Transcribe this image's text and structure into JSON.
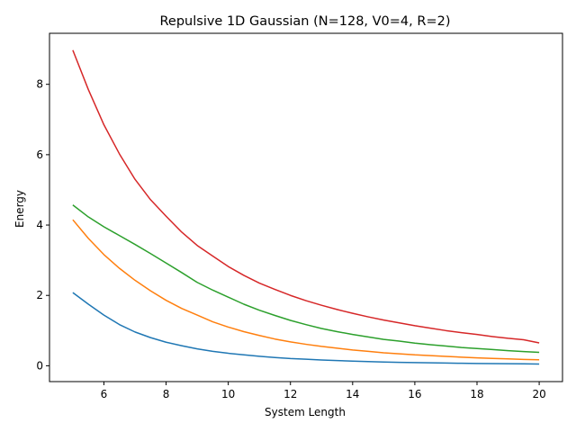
{
  "chart_data": {
    "type": "line",
    "title": "Repulsive 1D Gaussian (N=128, V0=4, R=2)",
    "xlabel": "System Length",
    "ylabel": "Energy",
    "xlim": [
      4.25,
      20.75
    ],
    "ylim": [
      -0.45,
      9.45
    ],
    "xticks": [
      6,
      8,
      10,
      12,
      14,
      16,
      18,
      20
    ],
    "yticks": [
      0,
      2,
      4,
      6,
      8
    ],
    "grid": false,
    "legend": "none",
    "x": [
      5,
      5.5,
      6,
      6.5,
      7,
      7.5,
      8,
      8.5,
      9,
      9.5,
      10,
      10.5,
      11,
      11.5,
      12,
      12.5,
      13,
      13.5,
      14,
      14.5,
      15,
      15.5,
      16,
      16.5,
      17,
      17.5,
      18,
      18.5,
      19,
      19.5,
      20
    ],
    "series": [
      {
        "color": "#1f77b4",
        "values": [
          2.08,
          1.75,
          1.44,
          1.17,
          0.96,
          0.8,
          0.67,
          0.57,
          0.48,
          0.41,
          0.355,
          0.31,
          0.27,
          0.235,
          0.205,
          0.185,
          0.165,
          0.148,
          0.132,
          0.12,
          0.108,
          0.098,
          0.09,
          0.083,
          0.077,
          0.071,
          0.066,
          0.061,
          0.057,
          0.054,
          0.05
        ]
      },
      {
        "color": "#ff7f0e",
        "values": [
          4.15,
          3.62,
          3.16,
          2.77,
          2.43,
          2.13,
          1.86,
          1.63,
          1.44,
          1.25,
          1.1,
          0.97,
          0.86,
          0.76,
          0.68,
          0.61,
          0.55,
          0.5,
          0.45,
          0.41,
          0.37,
          0.34,
          0.31,
          0.29,
          0.265,
          0.245,
          0.225,
          0.21,
          0.195,
          0.18,
          0.17
        ]
      },
      {
        "color": "#2ca02c",
        "values": [
          4.57,
          4.23,
          3.95,
          3.7,
          3.45,
          3.19,
          2.92,
          2.65,
          2.37,
          2.15,
          1.95,
          1.75,
          1.58,
          1.43,
          1.29,
          1.17,
          1.06,
          0.97,
          0.89,
          0.82,
          0.75,
          0.7,
          0.645,
          0.6,
          0.56,
          0.52,
          0.49,
          0.46,
          0.43,
          0.405,
          0.38
        ]
      },
      {
        "color": "#d62728",
        "values": [
          8.97,
          7.85,
          6.85,
          6.02,
          5.3,
          4.72,
          4.25,
          3.8,
          3.42,
          3.12,
          2.82,
          2.57,
          2.35,
          2.17,
          2.0,
          1.85,
          1.72,
          1.6,
          1.49,
          1.39,
          1.3,
          1.22,
          1.14,
          1.07,
          1.0,
          0.94,
          0.89,
          0.83,
          0.78,
          0.74,
          0.65
        ]
      }
    ]
  }
}
